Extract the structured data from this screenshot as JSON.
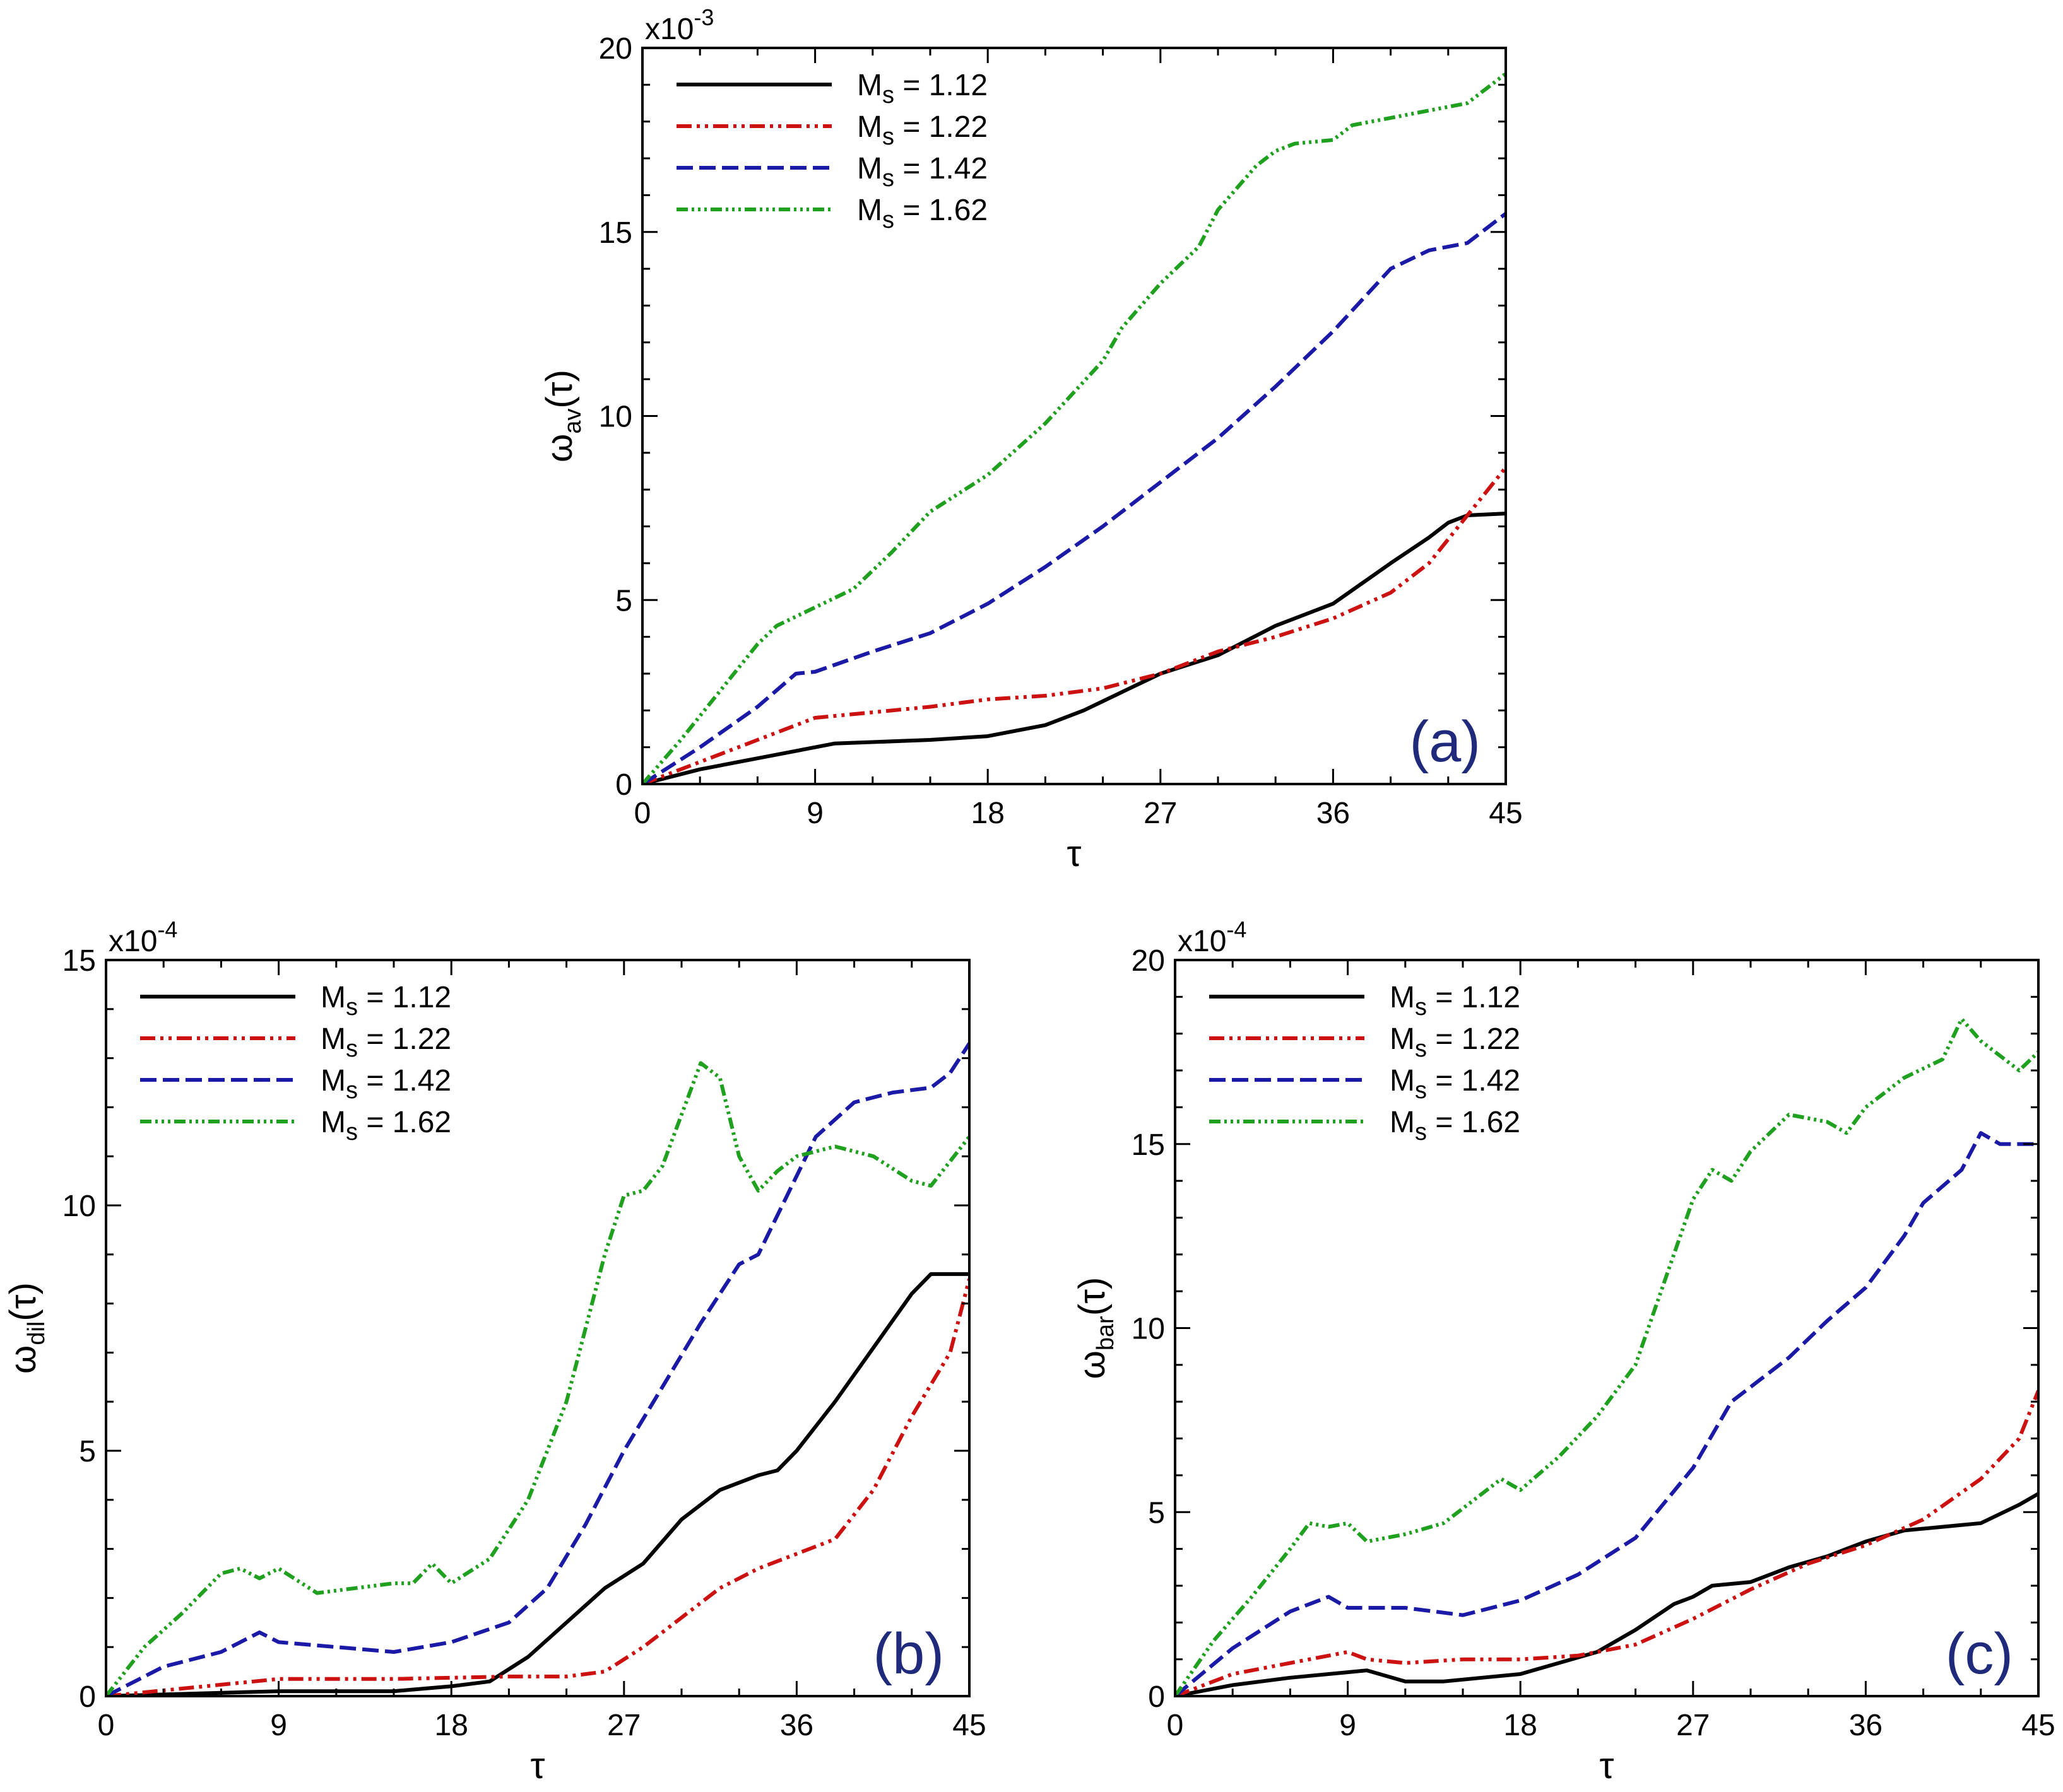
{
  "chart_data": [
    {
      "type": "line",
      "panel_label": "(a)",
      "ylabel": {
        "symbol": "ω",
        "sub": "av",
        "arg": "(τ)"
      },
      "xlabel": "τ",
      "y_multiplier": {
        "base": "x10",
        "exp": "-3"
      },
      "xlim": [
        0,
        45
      ],
      "ylim": [
        0,
        20
      ],
      "xticks": [
        "0",
        "9",
        "18",
        "27",
        "36",
        "45"
      ],
      "yticks": [
        "0",
        "5",
        "10",
        "15",
        "20"
      ],
      "legend_position": "top-left",
      "series": [
        {
          "name": "Ms = 1.12",
          "prefix": "M",
          "sub": "s",
          "value": " = 1.12",
          "color": "#000000",
          "dash": "",
          "x": [
            0,
            3,
            6,
            9,
            10,
            15,
            18,
            21,
            23,
            25,
            27,
            30,
            33,
            36,
            39,
            41,
            42,
            43,
            45
          ],
          "y": [
            0,
            0.4,
            0.7,
            1.0,
            1.1,
            1.2,
            1.3,
            1.6,
            2.0,
            2.5,
            3.0,
            3.5,
            4.3,
            4.9,
            6.0,
            6.7,
            7.1,
            7.3,
            7.35
          ]
        },
        {
          "name": "Ms = 1.22",
          "prefix": "M",
          "sub": "s",
          "value": " = 1.22",
          "color": "#cc1111",
          "dash": "24,8,5,8,5,8",
          "x": [
            0,
            3,
            6,
            9,
            10,
            15,
            18,
            21,
            24,
            27,
            30,
            33,
            36,
            39,
            41,
            43,
            45
          ],
          "y": [
            0,
            0.6,
            1.2,
            1.8,
            1.85,
            2.1,
            2.3,
            2.4,
            2.6,
            3.0,
            3.6,
            4.0,
            4.5,
            5.2,
            6.0,
            7.3,
            8.6
          ]
        },
        {
          "name": "Ms = 1.42",
          "prefix": "M",
          "sub": "s",
          "value": " = 1.42",
          "color": "#1a1aa6",
          "dash": "26,10",
          "x": [
            0,
            3,
            6,
            8,
            9,
            12,
            15,
            18,
            21,
            24,
            27,
            30,
            33,
            36,
            39,
            41,
            43,
            45
          ],
          "y": [
            0,
            1.0,
            2.1,
            3.0,
            3.05,
            3.6,
            4.1,
            4.9,
            5.9,
            7.0,
            8.2,
            9.4,
            10.8,
            12.3,
            14.0,
            14.5,
            14.7,
            15.5
          ]
        },
        {
          "name": "Ms = 1.62",
          "prefix": "M",
          "sub": "s",
          "value": " = 1.62",
          "color": "#1fa01f",
          "dash": "18,6,4,6,4,6,4,6",
          "x": [
            0,
            2,
            4,
            6,
            7,
            9,
            11,
            13,
            15,
            18,
            21,
            24,
            25,
            27,
            29,
            30,
            32,
            33,
            34,
            36,
            37,
            39,
            42,
            43,
            45
          ],
          "y": [
            0,
            1.2,
            2.5,
            3.8,
            4.3,
            4.8,
            5.3,
            6.3,
            7.4,
            8.4,
            9.8,
            11.5,
            12.4,
            13.6,
            14.6,
            15.6,
            16.8,
            17.2,
            17.4,
            17.5,
            17.9,
            18.1,
            18.4,
            18.5,
            19.3
          ]
        }
      ]
    },
    {
      "type": "line",
      "panel_label": "(b)",
      "ylabel": {
        "symbol": "ω",
        "sub": "dil",
        "arg": "(τ)"
      },
      "xlabel": "τ",
      "y_multiplier": {
        "base": "x10",
        "exp": "-4"
      },
      "xlim": [
        0,
        45
      ],
      "ylim": [
        0,
        15
      ],
      "xticks": [
        "0",
        "9",
        "18",
        "27",
        "36",
        "45"
      ],
      "yticks": [
        "0",
        "5",
        "10",
        "15"
      ],
      "legend_position": "top-left",
      "series": [
        {
          "name": "Ms = 1.12",
          "prefix": "M",
          "sub": "s",
          "value": " = 1.12",
          "color": "#000000",
          "dash": "",
          "x": [
            0,
            9,
            15,
            18,
            20,
            22,
            24,
            26,
            28,
            30,
            32,
            34,
            35,
            36,
            38,
            40,
            42,
            43,
            45
          ],
          "y": [
            0,
            0.1,
            0.1,
            0.2,
            0.3,
            0.8,
            1.5,
            2.2,
            2.7,
            3.6,
            4.2,
            4.5,
            4.6,
            5.0,
            6.0,
            7.1,
            8.2,
            8.6,
            8.6
          ]
        },
        {
          "name": "Ms = 1.22",
          "prefix": "M",
          "sub": "s",
          "value": " = 1.22",
          "color": "#cc1111",
          "dash": "24,8,5,8,5,8",
          "x": [
            0,
            9,
            15,
            21,
            24,
            26,
            28,
            30,
            32,
            34,
            36,
            38,
            40,
            42,
            44,
            45
          ],
          "y": [
            0,
            0.35,
            0.35,
            0.4,
            0.4,
            0.5,
            1.0,
            1.6,
            2.2,
            2.6,
            2.9,
            3.2,
            4.2,
            5.7,
            7.0,
            8.5
          ]
        },
        {
          "name": "Ms = 1.42",
          "prefix": "M",
          "sub": "s",
          "value": " = 1.42",
          "color": "#1a1aa6",
          "dash": "26,10",
          "x": [
            0,
            3,
            6,
            8,
            9,
            12,
            15,
            18,
            21,
            23,
            25,
            27,
            29,
            31,
            33,
            34,
            36,
            37,
            39,
            41,
            43,
            44,
            45
          ],
          "y": [
            0,
            0.6,
            0.9,
            1.3,
            1.1,
            1.0,
            0.9,
            1.1,
            1.5,
            2.2,
            3.5,
            5.0,
            6.3,
            7.6,
            8.8,
            9.0,
            10.6,
            11.4,
            12.1,
            12.3,
            12.4,
            12.7,
            13.3
          ]
        },
        {
          "name": "Ms = 1.62",
          "prefix": "M",
          "sub": "s",
          "value": " = 1.62",
          "color": "#1fa01f",
          "dash": "18,6,4,6,4,6,4,6",
          "x": [
            0,
            2,
            4,
            6,
            7,
            8,
            9,
            11,
            13,
            15,
            16,
            17,
            18,
            20,
            22,
            24,
            25,
            26,
            27,
            28,
            29,
            31,
            32,
            33,
            34,
            35,
            36,
            38,
            40,
            42,
            43,
            45
          ],
          "y": [
            0,
            1.0,
            1.7,
            2.5,
            2.6,
            2.4,
            2.6,
            2.1,
            2.2,
            2.3,
            2.3,
            2.7,
            2.3,
            2.8,
            4.0,
            6.0,
            7.5,
            9.0,
            10.2,
            10.3,
            10.8,
            12.9,
            12.6,
            11.0,
            10.3,
            10.7,
            11.0,
            11.2,
            11.0,
            10.5,
            10.4,
            11.4
          ]
        }
      ]
    },
    {
      "type": "line",
      "panel_label": "(c)",
      "ylabel": {
        "symbol": "ω",
        "sub": "bar",
        "arg": "(τ)"
      },
      "xlabel": "τ",
      "y_multiplier": {
        "base": "x10",
        "exp": "-4"
      },
      "xlim": [
        0,
        45
      ],
      "ylim": [
        0,
        20
      ],
      "xticks": [
        "0",
        "9",
        "18",
        "27",
        "36",
        "45"
      ],
      "yticks": [
        "0",
        "5",
        "10",
        "15",
        "20"
      ],
      "legend_position": "top-left",
      "series": [
        {
          "name": "Ms = 1.12",
          "prefix": "M",
          "sub": "s",
          "value": " = 1.12",
          "color": "#000000",
          "dash": "",
          "x": [
            0,
            3,
            6,
            9,
            10,
            12,
            14,
            16,
            18,
            20,
            22,
            24,
            26,
            27,
            28,
            30,
            32,
            34,
            36,
            38,
            40,
            42,
            44,
            45
          ],
          "y": [
            0,
            0.3,
            0.5,
            0.65,
            0.7,
            0.4,
            0.4,
            0.5,
            0.6,
            0.9,
            1.2,
            1.8,
            2.5,
            2.7,
            3.0,
            3.1,
            3.5,
            3.8,
            4.2,
            4.5,
            4.6,
            4.7,
            5.2,
            5.5
          ]
        },
        {
          "name": "Ms = 1.22",
          "prefix": "M",
          "sub": "s",
          "value": " = 1.22",
          "color": "#cc1111",
          "dash": "24,8,5,8,5,8",
          "x": [
            0,
            3,
            6,
            9,
            10,
            12,
            15,
            18,
            21,
            24,
            27,
            30,
            33,
            36,
            39,
            42,
            44,
            45
          ],
          "y": [
            0,
            0.6,
            0.9,
            1.2,
            1.0,
            0.9,
            1.0,
            1.0,
            1.1,
            1.4,
            2.1,
            2.9,
            3.6,
            4.1,
            4.8,
            5.9,
            7.0,
            8.3
          ]
        },
        {
          "name": "Ms = 1.42",
          "prefix": "M",
          "sub": "s",
          "value": " = 1.42",
          "color": "#1a1aa6",
          "dash": "26,10",
          "x": [
            0,
            3,
            6,
            8,
            9,
            12,
            15,
            18,
            21,
            24,
            27,
            29,
            30,
            32,
            34,
            36,
            38,
            39,
            41,
            42,
            43,
            45
          ],
          "y": [
            0,
            1.3,
            2.3,
            2.7,
            2.4,
            2.4,
            2.2,
            2.6,
            3.3,
            4.3,
            6.2,
            8.0,
            8.4,
            9.2,
            10.2,
            11.1,
            12.5,
            13.4,
            14.3,
            15.3,
            15.0,
            15.0
          ]
        },
        {
          "name": "Ms = 1.62",
          "prefix": "M",
          "sub": "s",
          "value": " = 1.62",
          "color": "#1fa01f",
          "dash": "18,6,4,6,4,6,4,6",
          "x": [
            0,
            2,
            4,
            6,
            7,
            8,
            9,
            10,
            12,
            14,
            16,
            17,
            18,
            20,
            22,
            24,
            25,
            27,
            28,
            29,
            30,
            32,
            34,
            35,
            36,
            38,
            40,
            41,
            42,
            44,
            45
          ],
          "y": [
            0,
            1.5,
            2.7,
            4.0,
            4.7,
            4.6,
            4.7,
            4.2,
            4.4,
            4.7,
            5.5,
            5.9,
            5.6,
            6.5,
            7.6,
            9.0,
            10.5,
            13.5,
            14.3,
            14.0,
            14.8,
            15.8,
            15.6,
            15.3,
            16.0,
            16.8,
            17.3,
            18.4,
            17.8,
            17.0,
            17.5
          ]
        }
      ]
    }
  ]
}
